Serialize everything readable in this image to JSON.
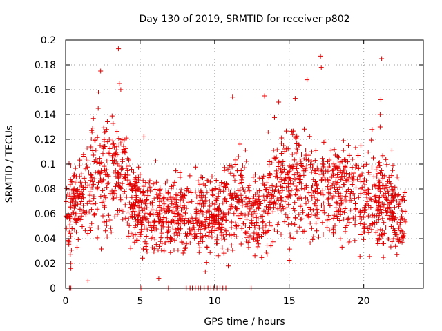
{
  "chart_data": {
    "type": "scatter",
    "title": "Day 130 of 2019, SRMTID for receiver p802",
    "xlabel": "GPS time / hours",
    "ylabel": "SRMTID / TECUs",
    "xlim": [
      0,
      24
    ],
    "ylim": [
      0,
      0.2
    ],
    "xticks": [
      0,
      5,
      10,
      15,
      20
    ],
    "xtick_labels": [
      "0",
      "5",
      "10",
      "15",
      "20"
    ],
    "yticks": [
      0,
      0.02,
      0.04,
      0.06,
      0.08,
      0.1,
      0.12,
      0.14,
      0.16,
      0.18,
      0.2
    ],
    "ytick_labels": [
      "0",
      "0.02",
      "0.04",
      "0.06",
      "0.08",
      "0.1",
      "0.12",
      "0.14",
      "0.16",
      "0.18",
      "0.2"
    ],
    "grid": true,
    "marker": "+",
    "color": "#e00000",
    "data_range_hours": [
      0,
      22.8
    ],
    "activity_profile": [
      {
        "x": 0.0,
        "base": 0.06,
        "spread": 0.02
      },
      {
        "x": 1.0,
        "base": 0.075,
        "spread": 0.025
      },
      {
        "x": 2.5,
        "base": 0.09,
        "spread": 0.03
      },
      {
        "x": 3.6,
        "base": 0.1,
        "spread": 0.035
      },
      {
        "x": 4.5,
        "base": 0.065,
        "spread": 0.02
      },
      {
        "x": 6.0,
        "base": 0.06,
        "spread": 0.02
      },
      {
        "x": 8.0,
        "base": 0.058,
        "spread": 0.018
      },
      {
        "x": 10.0,
        "base": 0.06,
        "spread": 0.02
      },
      {
        "x": 11.5,
        "base": 0.07,
        "spread": 0.025
      },
      {
        "x": 13.0,
        "base": 0.055,
        "spread": 0.02
      },
      {
        "x": 14.0,
        "base": 0.085,
        "spread": 0.03
      },
      {
        "x": 16.5,
        "base": 0.085,
        "spread": 0.03
      },
      {
        "x": 18.5,
        "base": 0.08,
        "spread": 0.025
      },
      {
        "x": 21.0,
        "base": 0.07,
        "spread": 0.025
      },
      {
        "x": 22.8,
        "base": 0.055,
        "spread": 0.02
      }
    ],
    "notable_points": [
      {
        "x": 3.55,
        "y": 0.193
      },
      {
        "x": 17.1,
        "y": 0.187
      },
      {
        "x": 21.2,
        "y": 0.185
      },
      {
        "x": 17.15,
        "y": 0.178
      },
      {
        "x": 2.35,
        "y": 0.175
      },
      {
        "x": 3.6,
        "y": 0.165
      },
      {
        "x": 3.7,
        "y": 0.16
      },
      {
        "x": 2.2,
        "y": 0.158
      },
      {
        "x": 13.35,
        "y": 0.155
      },
      {
        "x": 11.2,
        "y": 0.154
      },
      {
        "x": 15.4,
        "y": 0.153
      },
      {
        "x": 21.15,
        "y": 0.152
      },
      {
        "x": 14.3,
        "y": 0.15
      },
      {
        "x": 21.1,
        "y": 0.14
      },
      {
        "x": 21.1,
        "y": 0.13
      },
      {
        "x": 16.2,
        "y": 0.168
      },
      {
        "x": 5.25,
        "y": 0.122
      },
      {
        "x": 6.25,
        "y": 0.008
      },
      {
        "x": 1.5,
        "y": 0.006
      },
      {
        "x": 0.35,
        "y": 0.02
      },
      {
        "x": 0.35,
        "y": 0.016
      }
    ],
    "zero_points_hours": [
      0.25,
      0.35,
      5.0,
      5.1,
      6.9,
      8.1,
      8.35,
      8.5,
      8.7,
      8.9,
      9.05,
      9.3,
      9.55,
      9.75,
      9.95,
      10.15,
      10.35,
      10.55,
      10.75,
      12.45
    ]
  }
}
